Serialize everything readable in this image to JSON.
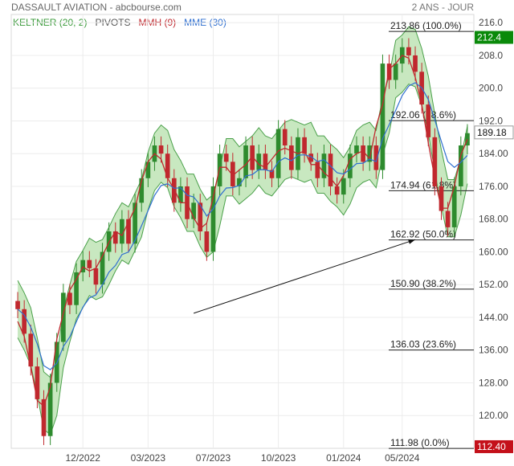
{
  "header": {
    "title": "DASSAULT AVIATION - abcbourse.com",
    "period": "2 ANS - JOUR"
  },
  "legend": {
    "keltner": "KELTNER (20, 2)",
    "pivots": "PIVOTS",
    "mmh": "MMH (9)",
    "mme": "MME (30)"
  },
  "colors": {
    "keltner_fill": "#c8e8c0",
    "keltner_line": "#4aa04a",
    "up": "#2e8b2e",
    "down": "#c0282e",
    "mmh": "#c0282e",
    "mme": "#2f6fd0",
    "badge_high": "#0a8a0a",
    "badge_low": "#c4101a"
  },
  "chart_data": {
    "type": "candlestick",
    "ylim": [
      112,
      218
    ],
    "y_ticks": [
      {
        "value": 216,
        "label": "216.0"
      },
      {
        "value": 208,
        "label": "208.0"
      },
      {
        "value": 200,
        "label": "200.0"
      },
      {
        "value": 192,
        "label": "192.0"
      },
      {
        "value": 184,
        "label": "184.00"
      },
      {
        "value": 176,
        "label": "176.00"
      },
      {
        "value": 168,
        "label": "168.00"
      },
      {
        "value": 160,
        "label": "160.00"
      },
      {
        "value": 152,
        "label": "152.00"
      },
      {
        "value": 144,
        "label": "144.00"
      },
      {
        "value": 136,
        "label": "136.00"
      },
      {
        "value": 128,
        "label": "128.00"
      },
      {
        "value": 120,
        "label": "120.00"
      }
    ],
    "x_ticks": [
      {
        "index": 10,
        "label": "12/2022"
      },
      {
        "index": 20,
        "label": "03/2023"
      },
      {
        "index": 30,
        "label": "07/2023"
      },
      {
        "index": 40,
        "label": "10/2023"
      },
      {
        "index": 50,
        "label": "01/2024"
      },
      {
        "index": 59,
        "label": "05/2024"
      }
    ],
    "fibonacci": [
      {
        "value": 213.86,
        "label": "213.86  (100.0%)"
      },
      {
        "value": 192.06,
        "label": "192.06  (78.6%)"
      },
      {
        "value": 174.94,
        "label": "174.94  (61.8%)"
      },
      {
        "value": 162.92,
        "label": "162.92  (50.0%)"
      },
      {
        "value": 150.9,
        "label": "150.90  (38.2%)"
      },
      {
        "value": 136.03,
        "label": "136.03  (23.6%)"
      },
      {
        "value": 111.98,
        "label": "111.98  (0.0%)"
      }
    ],
    "badges": [
      {
        "value": 212.4,
        "label": "212.4",
        "kind": "high"
      },
      {
        "value": 189.18,
        "label": "189.18",
        "kind": "last"
      },
      {
        "value": 112.4,
        "label": "112.40",
        "kind": "low"
      }
    ],
    "trendline": {
      "from": [
        27,
        145
      ],
      "to": [
        61,
        163
      ]
    },
    "close": [
      146,
      140,
      132,
      124,
      115,
      128,
      138,
      150,
      147,
      155,
      158,
      156,
      152,
      160,
      165,
      162,
      168,
      162,
      172,
      178,
      182,
      186,
      184,
      178,
      172,
      176,
      168,
      172,
      165,
      160,
      176,
      184,
      182,
      176,
      178,
      186,
      180,
      184,
      180,
      178,
      190,
      186,
      180,
      188,
      184,
      182,
      178,
      184,
      176,
      174,
      178,
      184,
      186,
      182,
      186,
      180,
      206,
      202,
      206,
      210,
      208,
      204,
      196,
      188,
      176,
      170,
      166,
      176,
      186,
      189
    ]
  }
}
